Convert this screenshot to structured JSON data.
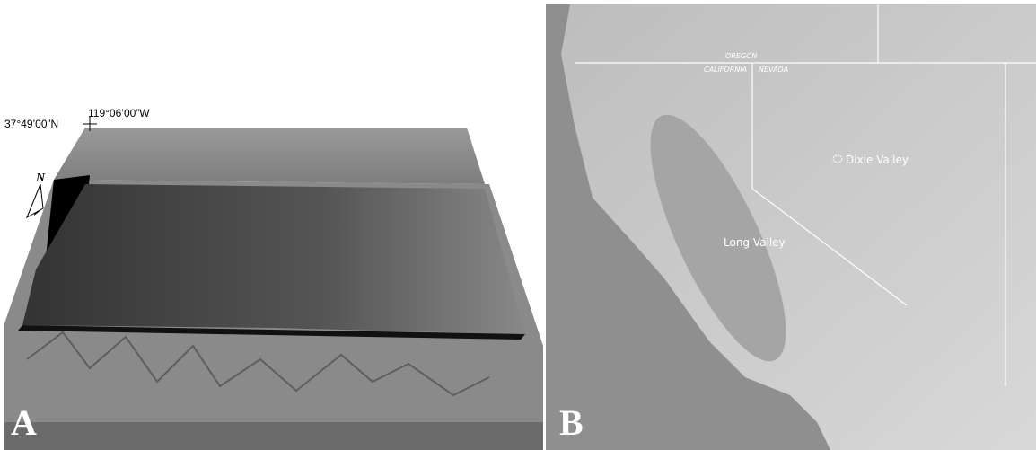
{
  "panel_a": {
    "label": "A",
    "latitude": "37°49’00”N",
    "longitude": "119°06’00”W",
    "north_arrow": "N"
  },
  "panel_b": {
    "label": "B",
    "states": [
      "OREGON",
      "CALIFORNIA",
      "NEVADA"
    ],
    "places": [
      "Dixie Valley",
      "Long Valley"
    ]
  }
}
